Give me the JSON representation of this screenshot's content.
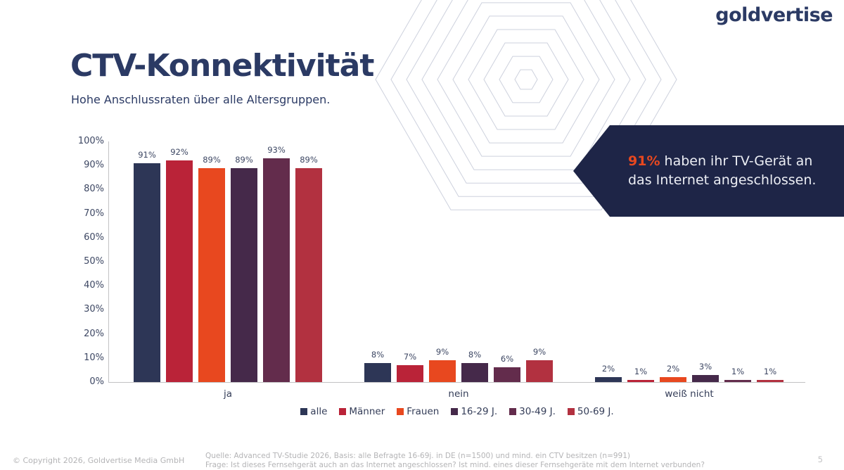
{
  "brand": {
    "logo_text": "goldvertise"
  },
  "header": {
    "title": "CTV-Konnektivität",
    "subtitle": "Hohe Anschlussraten über alle Altersgruppen."
  },
  "callout": {
    "highlight": "91%",
    "text": "haben ihr TV-Gerät an das Internet angeschlossen."
  },
  "chart_data": {
    "type": "bar",
    "title": "",
    "categories": [
      "ja",
      "nein",
      "weiß nicht"
    ],
    "series": [
      {
        "name": "alle",
        "color": "#2d3656",
        "values": [
          91,
          8,
          2
        ]
      },
      {
        "name": "Männer",
        "color": "#ba2338",
        "values": [
          92,
          7,
          1
        ]
      },
      {
        "name": "Frauen",
        "color": "#e8481f",
        "values": [
          89,
          9,
          2
        ]
      },
      {
        "name": "16-29 J.",
        "color": "#45294a",
        "values": [
          89,
          8,
          3
        ]
      },
      {
        "name": "30-49 J.",
        "color": "#632c4c",
        "values": [
          93,
          6,
          1
        ]
      },
      {
        "name": "50-69 J.",
        "color": "#b23140",
        "values": [
          89,
          9,
          1
        ]
      }
    ],
    "ylim": [
      0,
      100
    ],
    "yticks": [
      "100%",
      "90%",
      "80%",
      "70%",
      "60%",
      "50%",
      "40%",
      "30%",
      "20%",
      "10%",
      "0%"
    ],
    "value_suffix": "%",
    "grid": false,
    "legend_position": "bottom"
  },
  "footer": {
    "copyright": "© Copyright 2026, Goldvertise Media GmbH",
    "source_line1": "Quelle: Advanced TV-Studie 2026, Basis: alle Befragte 16-69j. in DE (n=1500) und mind. ein CTV besitzen (n=991)",
    "source_line2": "Frage: Ist dieses Fernsehgerät auch an das Internet angeschlossen? Ist mind. eines dieser Fernsehgeräte mit dem Internet verbunden?",
    "page_number": "5"
  },
  "colors": {
    "navy": "#2b3a64",
    "callout_bg": "#1e2547",
    "accent_orange": "#e8481f",
    "axis_text": "#3d4763",
    "axis_line": "#c2c2c4",
    "footer_text": "#b4b4b6",
    "hexagon_stroke": "#cdd1dd"
  }
}
